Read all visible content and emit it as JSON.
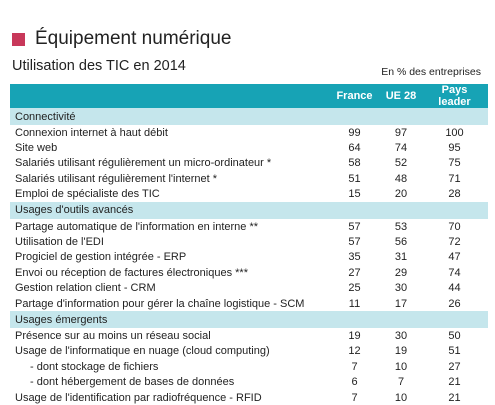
{
  "title": "Équipement numérique",
  "subtitle": "Utilisation des TIC en 2014",
  "unit_note": "En % des entreprises",
  "colors": {
    "accent_square": "#c8385a",
    "header_bg": "#17a3b5",
    "section_bg": "#c5e6ec"
  },
  "table": {
    "headers": [
      "",
      "France",
      "UE 28",
      "Pays leader"
    ],
    "sections": [
      {
        "name": "Connectivité",
        "rows": [
          {
            "label": "Connexion internet à haut débit",
            "france": "99",
            "ue28": "97",
            "leader": "100"
          },
          {
            "label": "Site web",
            "france": "64",
            "ue28": "74",
            "leader": "95"
          },
          {
            "label": "Salariés utilisant régulièrement un micro-ordinateur *",
            "france": "58",
            "ue28": "52",
            "leader": "75"
          },
          {
            "label": "Salariés utilisant régulièrement l'internet *",
            "france": "51",
            "ue28": "48",
            "leader": "71"
          },
          {
            "label": "Emploi de spécialiste des TIC",
            "france": "15",
            "ue28": "20",
            "leader": "28"
          }
        ]
      },
      {
        "name": "Usages d'outils avancés",
        "rows": [
          {
            "label": "Partage automatique de l'information en interne **",
            "france": "57",
            "ue28": "53",
            "leader": "70"
          },
          {
            "label": "Utilisation de l'EDI",
            "france": "57",
            "ue28": "56",
            "leader": "72"
          },
          {
            "label": "Progiciel de gestion intégrée - ERP",
            "france": "35",
            "ue28": "31",
            "leader": "47"
          },
          {
            "label": "Envoi ou réception de factures électroniques ***",
            "france": "27",
            "ue28": "29",
            "leader": "74"
          },
          {
            "label": "Gestion relation client - CRM",
            "france": "25",
            "ue28": "30",
            "leader": "44"
          },
          {
            "label": "Partage d'information pour gérer la chaîne logistique - SCM",
            "france": "11",
            "ue28": "17",
            "leader": "26"
          }
        ]
      },
      {
        "name": "Usages émergents",
        "rows": [
          {
            "label": "Présence sur au moins un réseau social",
            "france": "19",
            "ue28": "30",
            "leader": "50"
          },
          {
            "label": "Usage de l'informatique en nuage (cloud computing)",
            "france": "12",
            "ue28": "19",
            "leader": "51"
          },
          {
            "label": "- dont stockage de fichiers",
            "france": "7",
            "ue28": "10",
            "leader": "27",
            "indent": true
          },
          {
            "label": "- dont hébergement  de bases de données",
            "france": "6",
            "ue28": "7",
            "leader": "21",
            "indent": true
          },
          {
            "label": "Usage de l'identification par radiofréquence - RFID",
            "france": "7",
            "ue28": "10",
            "leader": "21"
          }
        ]
      }
    ]
  }
}
